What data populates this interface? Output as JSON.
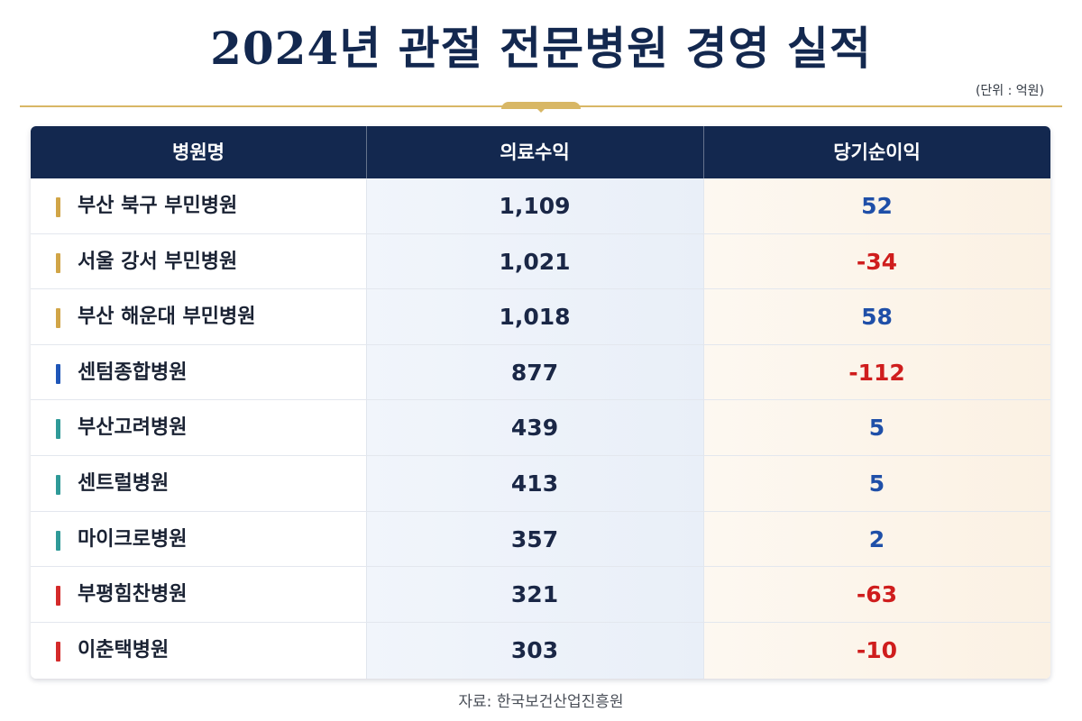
{
  "title": "2024년 관절 전문병원 경영 실적",
  "unit": "(단위 : 억원)",
  "source": "자료: 한국보건산업진흥원",
  "colors": {
    "header_bg": "#13284f",
    "gold": "#d8b765",
    "positive": "#1f4fa8",
    "negative": "#cf1d1d",
    "tag_gold": "#d1a547",
    "tag_blue": "#1f56b8",
    "tag_teal": "#2f9a98",
    "tag_red": "#d42a2a"
  },
  "chart_data": {
    "type": "table",
    "title": "2024년 관절 전문병원 경영 실적",
    "unit": "(단위 : 억원)",
    "columns": [
      "병원명",
      "의료수익",
      "당기순이익"
    ],
    "rows": [
      {
        "name": "부산 북구 부민병원",
        "revenue": "1,109",
        "net_income": "52",
        "tag": "gold"
      },
      {
        "name": "서울 강서 부민병원",
        "revenue": "1,021",
        "net_income": "-34",
        "tag": "gold"
      },
      {
        "name": "부산 해운대 부민병원",
        "revenue": "1,018",
        "net_income": "58",
        "tag": "gold"
      },
      {
        "name": "센텀종합병원",
        "revenue": "877",
        "net_income": "-112",
        "tag": "blue"
      },
      {
        "name": "부산고려병원",
        "revenue": "439",
        "net_income": "5",
        "tag": "teal"
      },
      {
        "name": "센트럴병원",
        "revenue": "413",
        "net_income": "5",
        "tag": "teal"
      },
      {
        "name": "마이크로병원",
        "revenue": "357",
        "net_income": "2",
        "tag": "teal"
      },
      {
        "name": "부평힘찬병원",
        "revenue": "321",
        "net_income": "-63",
        "tag": "red"
      },
      {
        "name": "이춘택병원",
        "revenue": "303",
        "net_income": "-10",
        "tag": "red"
      }
    ]
  }
}
